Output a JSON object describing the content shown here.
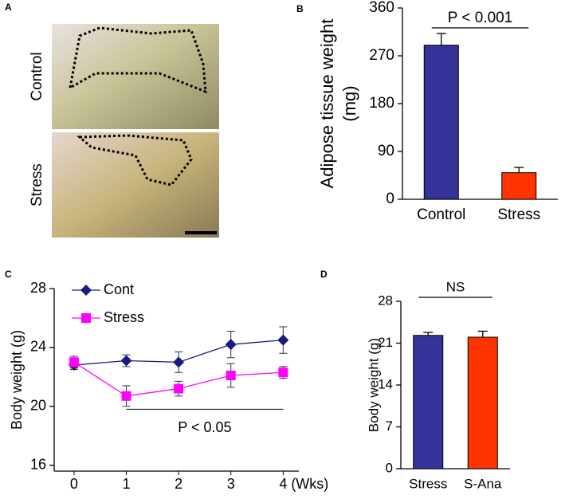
{
  "panel_labels": [
    "A",
    "B",
    "C",
    "D"
  ],
  "photo_panel": {
    "labels": [
      "Control",
      "Stress"
    ]
  },
  "chart_data": [
    {
      "type": "bar",
      "ylabel": [
        "Adipose tissue  weight",
        "(mg)"
      ],
      "annotation": "P < 0.001",
      "categories": [
        "Control",
        "Stress"
      ],
      "values": [
        290,
        50
      ],
      "errors": [
        22,
        10
      ],
      "colors": [
        "#333399",
        "#ff3300"
      ],
      "ylim": [
        0,
        360
      ],
      "yticks": [
        0,
        90,
        180,
        270,
        360
      ]
    },
    {
      "type": "line",
      "ylabel": "Body weight (g)",
      "xlabel": "(Wks)",
      "annotation": "P < 0.05",
      "x": [
        0,
        1,
        2,
        3,
        4
      ],
      "xlim": [
        -0.38,
        4.3
      ],
      "xticks": [
        0,
        1,
        2,
        3,
        4
      ],
      "ylim": [
        15.6,
        28
      ],
      "yticks": [
        16,
        20,
        24,
        28
      ],
      "series": [
        {
          "name": "Cont",
          "color": "#1a1a80",
          "marker": "diamond",
          "values": [
            22.8,
            23.1,
            23.0,
            24.2,
            24.5
          ],
          "errors": [
            0.3,
            0.4,
            0.7,
            0.9,
            0.9
          ]
        },
        {
          "name": "Stress",
          "color": "#ff00ff",
          "marker": "square",
          "values": [
            23.0,
            20.7,
            21.2,
            22.1,
            22.3
          ],
          "errors": [
            0.4,
            0.7,
            0.5,
            0.8,
            0.4
          ]
        }
      ]
    },
    {
      "type": "bar",
      "ylabel": "Body weight (g)",
      "annotation": "NS",
      "categories": [
        "Stress",
        "S-Ana"
      ],
      "values": [
        22.3,
        22.0
      ],
      "errors": [
        0.5,
        1.0
      ],
      "colors": [
        "#333399",
        "#ff3300"
      ],
      "ylim": [
        0,
        28
      ],
      "yticks": [
        0,
        7,
        14,
        21,
        28
      ]
    }
  ]
}
